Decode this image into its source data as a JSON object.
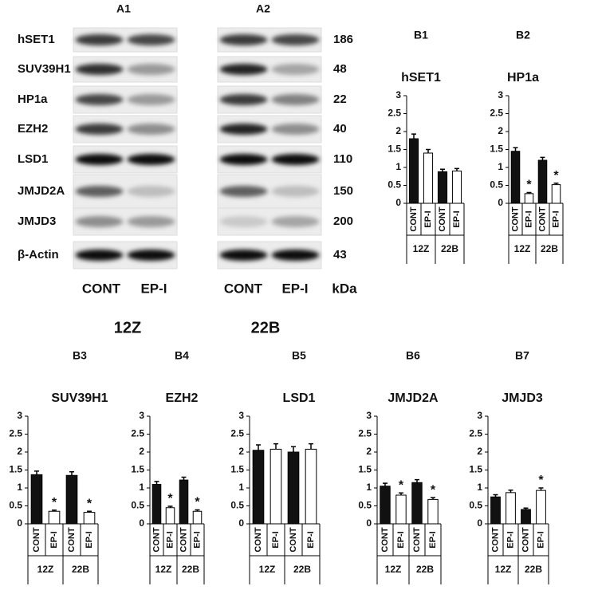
{
  "blots": {
    "panels": [
      "A1",
      "A2"
    ],
    "proteins": [
      "hSET1",
      "SUV39H1",
      "HP1a",
      "EZH2",
      "LSD1",
      "JMJD2A",
      "JMJD3",
      "β-Actin"
    ],
    "kda": [
      "186",
      "48",
      "22",
      "40",
      "110",
      "150",
      "200",
      "43"
    ],
    "lanes": [
      "CONT",
      "EP-I",
      "CONT",
      "EP-I"
    ],
    "unit": "kDa",
    "cell_lines": [
      "12Z",
      "22B"
    ]
  },
  "chart_data": [
    {
      "type": "bar",
      "label": "B1",
      "title": "hSET1",
      "categories": [
        "CONT",
        "EP-I",
        "CONT",
        "EP-I"
      ],
      "groups": [
        "12Z",
        "22B"
      ],
      "colors": [
        "#111111",
        "#ffffff",
        "#111111",
        "#ffffff"
      ],
      "values": [
        1.8,
        1.4,
        0.88,
        0.9
      ],
      "errors": [
        0.13,
        0.1,
        0.07,
        0.07
      ],
      "annotations": [],
      "ylim": [
        0,
        3
      ],
      "yticks": [
        0,
        0.5,
        1,
        1.5,
        2,
        2.5,
        3
      ]
    },
    {
      "type": "bar",
      "label": "B2",
      "title": "HP1a",
      "categories": [
        "CONT",
        "EP-I",
        "CONT",
        "EP-I"
      ],
      "groups": [
        "12Z",
        "22B"
      ],
      "colors": [
        "#111111",
        "#ffffff",
        "#111111",
        "#ffffff"
      ],
      "values": [
        1.45,
        0.27,
        1.2,
        0.52
      ],
      "errors": [
        0.1,
        0.03,
        0.08,
        0.04
      ],
      "annotations": [
        {
          "index": 1,
          "text": "*"
        },
        {
          "index": 3,
          "text": "*"
        }
      ],
      "ylim": [
        0,
        3
      ],
      "yticks": [
        0,
        0.5,
        1,
        1.5,
        2,
        2.5,
        3
      ]
    },
    {
      "type": "bar",
      "label": "B3",
      "title": "SUV39H1",
      "categories": [
        "CONT",
        "EP-I",
        "CONT",
        "EP-I"
      ],
      "groups": [
        "12Z",
        "22B"
      ],
      "colors": [
        "#111111",
        "#ffffff",
        "#111111",
        "#ffffff"
      ],
      "values": [
        1.37,
        0.35,
        1.35,
        0.32
      ],
      "errors": [
        0.1,
        0.03,
        0.1,
        0.03
      ],
      "annotations": [
        {
          "index": 1,
          "text": "*"
        },
        {
          "index": 3,
          "text": "*"
        }
      ],
      "ylim": [
        0,
        3
      ],
      "yticks": [
        0,
        0.5,
        1,
        1.5,
        2,
        2.5,
        3
      ]
    },
    {
      "type": "bar",
      "label": "B4",
      "title": "EZH2",
      "categories": [
        "CONT",
        "EP-I",
        "CONT",
        "EP-I"
      ],
      "groups": [
        "12Z",
        "22B"
      ],
      "colors": [
        "#111111",
        "#ffffff",
        "#111111",
        "#ffffff"
      ],
      "values": [
        1.1,
        0.45,
        1.22,
        0.35
      ],
      "errors": [
        0.08,
        0.04,
        0.08,
        0.04
      ],
      "annotations": [
        {
          "index": 1,
          "text": "*"
        },
        {
          "index": 3,
          "text": "*"
        }
      ],
      "ylim": [
        0,
        3
      ],
      "yticks": [
        0,
        0.5,
        1,
        1.5,
        2,
        2.5,
        3
      ]
    },
    {
      "type": "bar",
      "label": "B5",
      "title": "LSD1",
      "categories": [
        "CONT",
        "EP-I",
        "CONT",
        "EP-I"
      ],
      "groups": [
        "12Z",
        "22B"
      ],
      "colors": [
        "#111111",
        "#ffffff",
        "#111111",
        "#ffffff"
      ],
      "values": [
        2.05,
        2.08,
        2.0,
        2.08
      ],
      "errors": [
        0.15,
        0.15,
        0.15,
        0.15
      ],
      "annotations": [],
      "ylim": [
        0,
        3
      ],
      "yticks": [
        0,
        0.5,
        1,
        1.5,
        2,
        2.5,
        3
      ]
    },
    {
      "type": "bar",
      "label": "B6",
      "title": "JMJD2A",
      "categories": [
        "CONT",
        "EP-I",
        "CONT",
        "EP-I"
      ],
      "groups": [
        "12Z",
        "22B"
      ],
      "colors": [
        "#111111",
        "#ffffff",
        "#111111",
        "#ffffff"
      ],
      "values": [
        1.05,
        0.8,
        1.15,
        0.68
      ],
      "errors": [
        0.08,
        0.06,
        0.08,
        0.05
      ],
      "annotations": [
        {
          "index": 1,
          "text": "*"
        },
        {
          "index": 3,
          "text": "*"
        }
      ],
      "ylim": [
        0,
        3
      ],
      "yticks": [
        0,
        0.5,
        1,
        1.5,
        2,
        2.5,
        3
      ]
    },
    {
      "type": "bar",
      "label": "B7",
      "title": "JMJD3",
      "categories": [
        "CONT",
        "EP-I",
        "CONT",
        "EP-I"
      ],
      "groups": [
        "12Z",
        "22B"
      ],
      "colors": [
        "#111111",
        "#ffffff",
        "#111111",
        "#ffffff"
      ],
      "values": [
        0.75,
        0.87,
        0.4,
        0.93
      ],
      "errors": [
        0.06,
        0.07,
        0.04,
        0.07
      ],
      "annotations": [
        {
          "index": 3,
          "text": "*"
        }
      ],
      "ylim": [
        0,
        3
      ],
      "yticks": [
        0,
        0.5,
        1,
        1.5,
        2,
        2.5,
        3
      ]
    }
  ]
}
